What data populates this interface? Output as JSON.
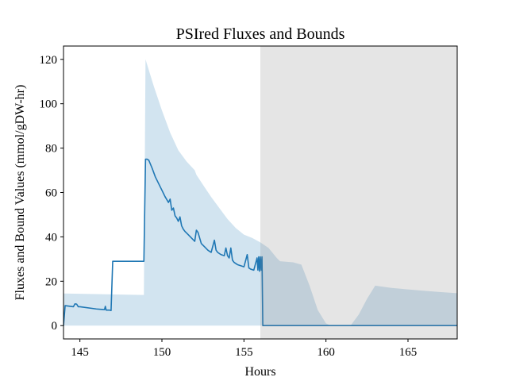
{
  "chart_data": {
    "type": "line",
    "title": "PSIred Fluxes and Bounds",
    "xlabel": "Hours",
    "ylabel": "Fluxes and Bound Values (mmol/gDW-hr)",
    "xlim": [
      144,
      168
    ],
    "ylim": [
      -6,
      126
    ],
    "xticks": [
      145,
      150,
      155,
      160,
      165
    ],
    "yticks": [
      0,
      20,
      40,
      60,
      80,
      100,
      120
    ],
    "grid": false,
    "colors": {
      "flux_line": "#1f77b4",
      "bound_fill": "#1f77b4",
      "night_shade": "#7f7f7f"
    },
    "night_region": {
      "x_start": 156.0,
      "x_end": 168.0
    },
    "series": [
      {
        "kind": "line",
        "x": [
          144.0,
          144.1,
          144.6,
          144.7,
          144.8,
          144.9,
          145.0,
          146.0,
          146.5,
          146.55,
          146.6,
          146.8,
          146.9,
          147.0,
          148.9,
          149.0,
          149.1,
          149.2,
          149.4,
          149.6,
          149.8,
          150.0,
          150.2,
          150.4,
          150.5,
          150.6,
          150.7,
          150.8,
          150.9,
          151.0,
          151.1,
          151.2,
          151.3,
          151.4,
          151.6,
          151.8,
          152.0,
          152.1,
          152.2,
          152.4,
          152.6,
          152.8,
          153.0,
          153.2,
          153.3,
          153.4,
          153.6,
          153.8,
          153.9,
          154.0,
          154.1,
          154.2,
          154.3,
          154.35,
          154.4,
          154.6,
          154.8,
          155.0,
          155.2,
          155.3,
          155.4,
          155.6,
          155.8,
          155.85,
          155.9,
          155.95,
          156.0,
          156.05,
          156.1,
          156.15,
          156.2,
          168.0
        ],
        "y": [
          0.0,
          9.0,
          8.5,
          9.8,
          9.7,
          8.5,
          8.5,
          7.5,
          7.2,
          8.7,
          7.0,
          7.0,
          6.8,
          29.0,
          29.0,
          75.0,
          75.0,
          74.5,
          71.0,
          67.0,
          64.0,
          61.0,
          58.0,
          55.5,
          57.0,
          52.0,
          53.0,
          49.5,
          48.5,
          47.0,
          49.0,
          45.0,
          43.5,
          42.5,
          41.0,
          39.5,
          38.0,
          43.0,
          42.0,
          37.0,
          35.5,
          34.0,
          33.0,
          38.5,
          34.0,
          33.0,
          32.0,
          31.5,
          35.0,
          31.5,
          30.5,
          35.0,
          29.5,
          29.0,
          28.5,
          27.5,
          27.0,
          26.5,
          32.0,
          26.0,
          25.5,
          25.0,
          30.5,
          25.0,
          31.0,
          24.5,
          31.0,
          25.0,
          31.0,
          0.0,
          0.0,
          0.0
        ]
      },
      {
        "kind": "band",
        "x": [
          144.0,
          148.9,
          149.0,
          149.5,
          150.0,
          150.5,
          151.0,
          151.5,
          152.0,
          152.1,
          152.5,
          153.0,
          153.5,
          154.0,
          154.5,
          155.0,
          155.5,
          156.0,
          156.5,
          157.0,
          157.2,
          158.0,
          158.5,
          159.0,
          159.5,
          160.0,
          160.3,
          161.5,
          162.0,
          162.5,
          163.0,
          164.0,
          165.0,
          166.0,
          167.0,
          168.0
        ],
        "lower": [
          0.0,
          0.0,
          0.0,
          0.0,
          0.0,
          0.0,
          0.0,
          0.0,
          0.0,
          0.0,
          0.0,
          0.0,
          0.0,
          0.0,
          0.0,
          0.0,
          0.0,
          0.0,
          0.0,
          0.0,
          0.0,
          0.0,
          0.0,
          0.0,
          0.0,
          0.0,
          0.0,
          0.0,
          0.0,
          0.0,
          0.0,
          0.0,
          0.0,
          0.0,
          0.0,
          0.0
        ],
        "upper": [
          14.5,
          13.8,
          120.0,
          108.0,
          97.0,
          87.0,
          79.0,
          74.0,
          70.0,
          68.0,
          63.5,
          58.0,
          53.0,
          48.0,
          44.0,
          41.0,
          39.5,
          37.5,
          35.0,
          30.5,
          29.0,
          28.5,
          27.5,
          18.0,
          7.0,
          1.0,
          0.0,
          0.0,
          5.0,
          12.0,
          18.0,
          17.0,
          16.3,
          15.7,
          15.1,
          14.6
        ]
      }
    ]
  }
}
